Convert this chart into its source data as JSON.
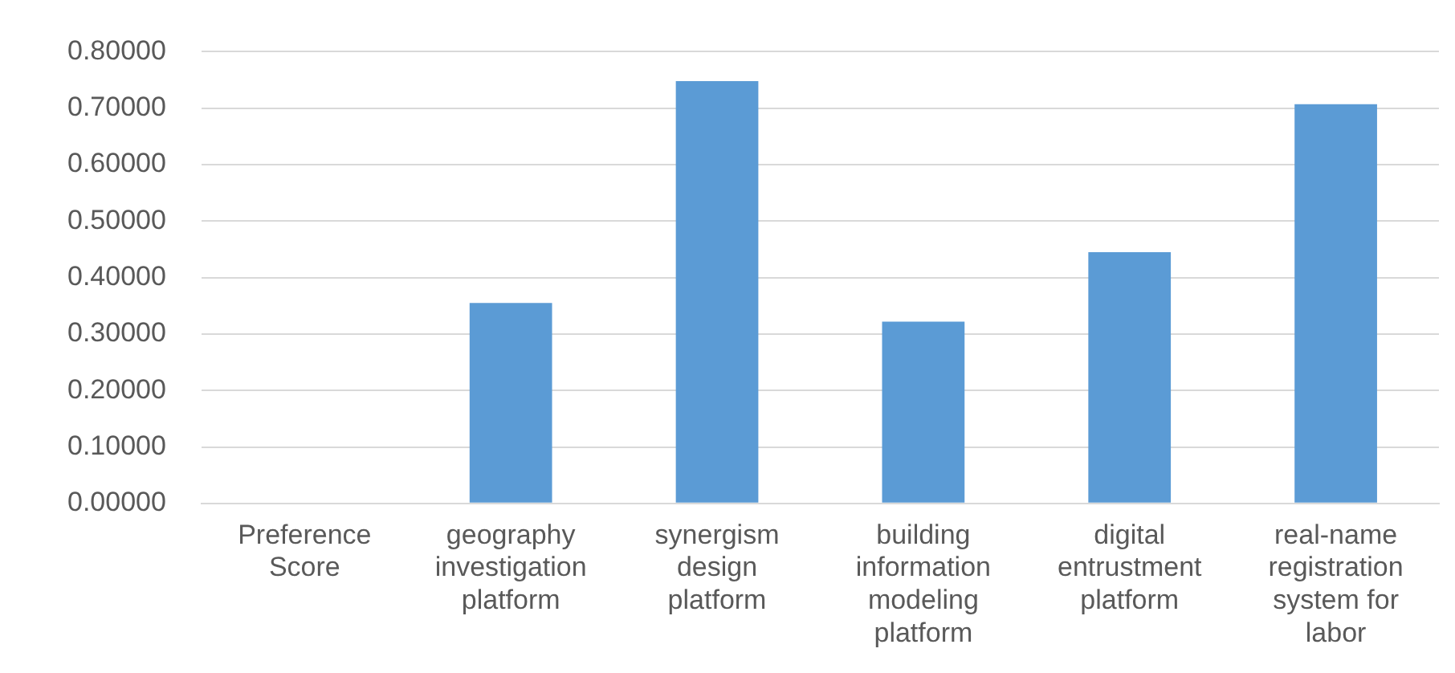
{
  "chart_data": {
    "type": "bar",
    "categories": [
      "Preference Score",
      "geography investigation platform",
      "synergism design platform",
      "building information modeling platform",
      "digital entrustment platform",
      "real-name registration system for labor"
    ],
    "values": [
      null,
      0.355,
      0.748,
      0.322,
      0.445,
      0.707
    ],
    "color": "#5b9bd5",
    "ylim": [
      0,
      0.8
    ],
    "yticks": [
      {
        "value": 0,
        "label": "0.00000"
      },
      {
        "value": 0.1,
        "label": "0.10000"
      },
      {
        "value": 0.2,
        "label": "0.20000"
      },
      {
        "value": 0.3,
        "label": "0.30000"
      },
      {
        "value": 0.4,
        "label": "0.40000"
      },
      {
        "value": 0.5,
        "label": "0.50000"
      },
      {
        "value": 0.6,
        "label": "0.60000"
      },
      {
        "value": 0.7,
        "label": "0.70000"
      },
      {
        "value": 0.8,
        "label": "0.80000"
      }
    ],
    "grid": "y"
  }
}
